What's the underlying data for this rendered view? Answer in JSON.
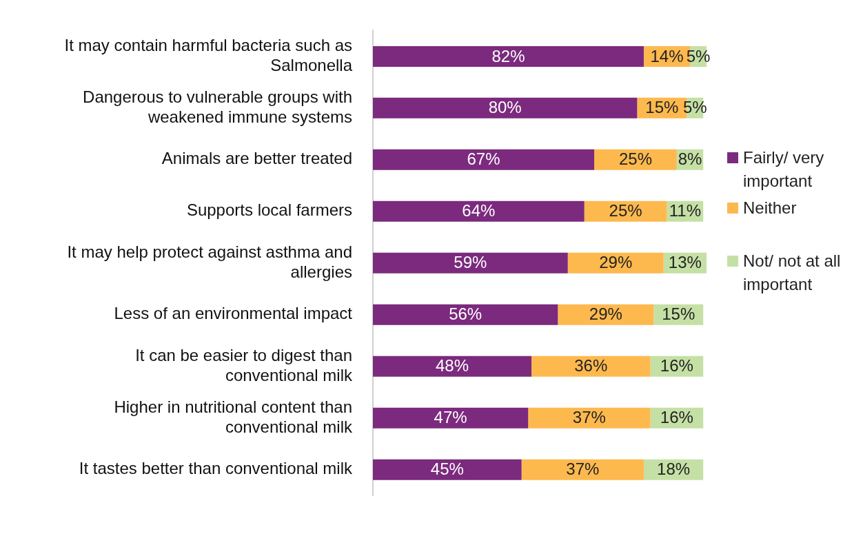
{
  "chart_data": {
    "type": "bar",
    "orientation": "horizontal",
    "stacked": true,
    "legend": "right",
    "categories": [
      "It may contain harmful bacteria such as Salmonella",
      "Dangerous to vulnerable groups with weakened immune systems",
      "Animals are better treated",
      "Supports local farmers",
      "It may help protect against asthma and allergies",
      "Less of an environmental impact",
      "It can be easier to digest than conventional milk",
      "Higher in nutritional content than conventional milk",
      "It tastes better than conventional milk"
    ],
    "series": [
      {
        "name": "Fairly/ very important",
        "color": "#7b2a7e",
        "values": [
          82,
          80,
          67,
          64,
          59,
          56,
          48,
          47,
          45
        ],
        "value_labels": [
          "82%",
          "80%",
          "67%",
          "64%",
          "59%",
          "56%",
          "48%",
          "47%",
          "45%"
        ]
      },
      {
        "name": "Neither",
        "color": "#fdb94e",
        "values": [
          14,
          15,
          25,
          25,
          29,
          29,
          36,
          37,
          37
        ],
        "value_labels": [
          "14%",
          "15%",
          "25%",
          "25%",
          "29%",
          "29%",
          "36%",
          "37%",
          "37%"
        ]
      },
      {
        "name": "Not/ not at all important",
        "color": "#c5e0a5",
        "values": [
          5,
          5,
          8,
          11,
          13,
          15,
          16,
          16,
          18
        ],
        "value_labels": [
          "5%",
          "5%",
          "8%",
          "11%",
          "13%",
          "15%",
          "16%",
          "16%",
          "18%"
        ]
      }
    ]
  }
}
